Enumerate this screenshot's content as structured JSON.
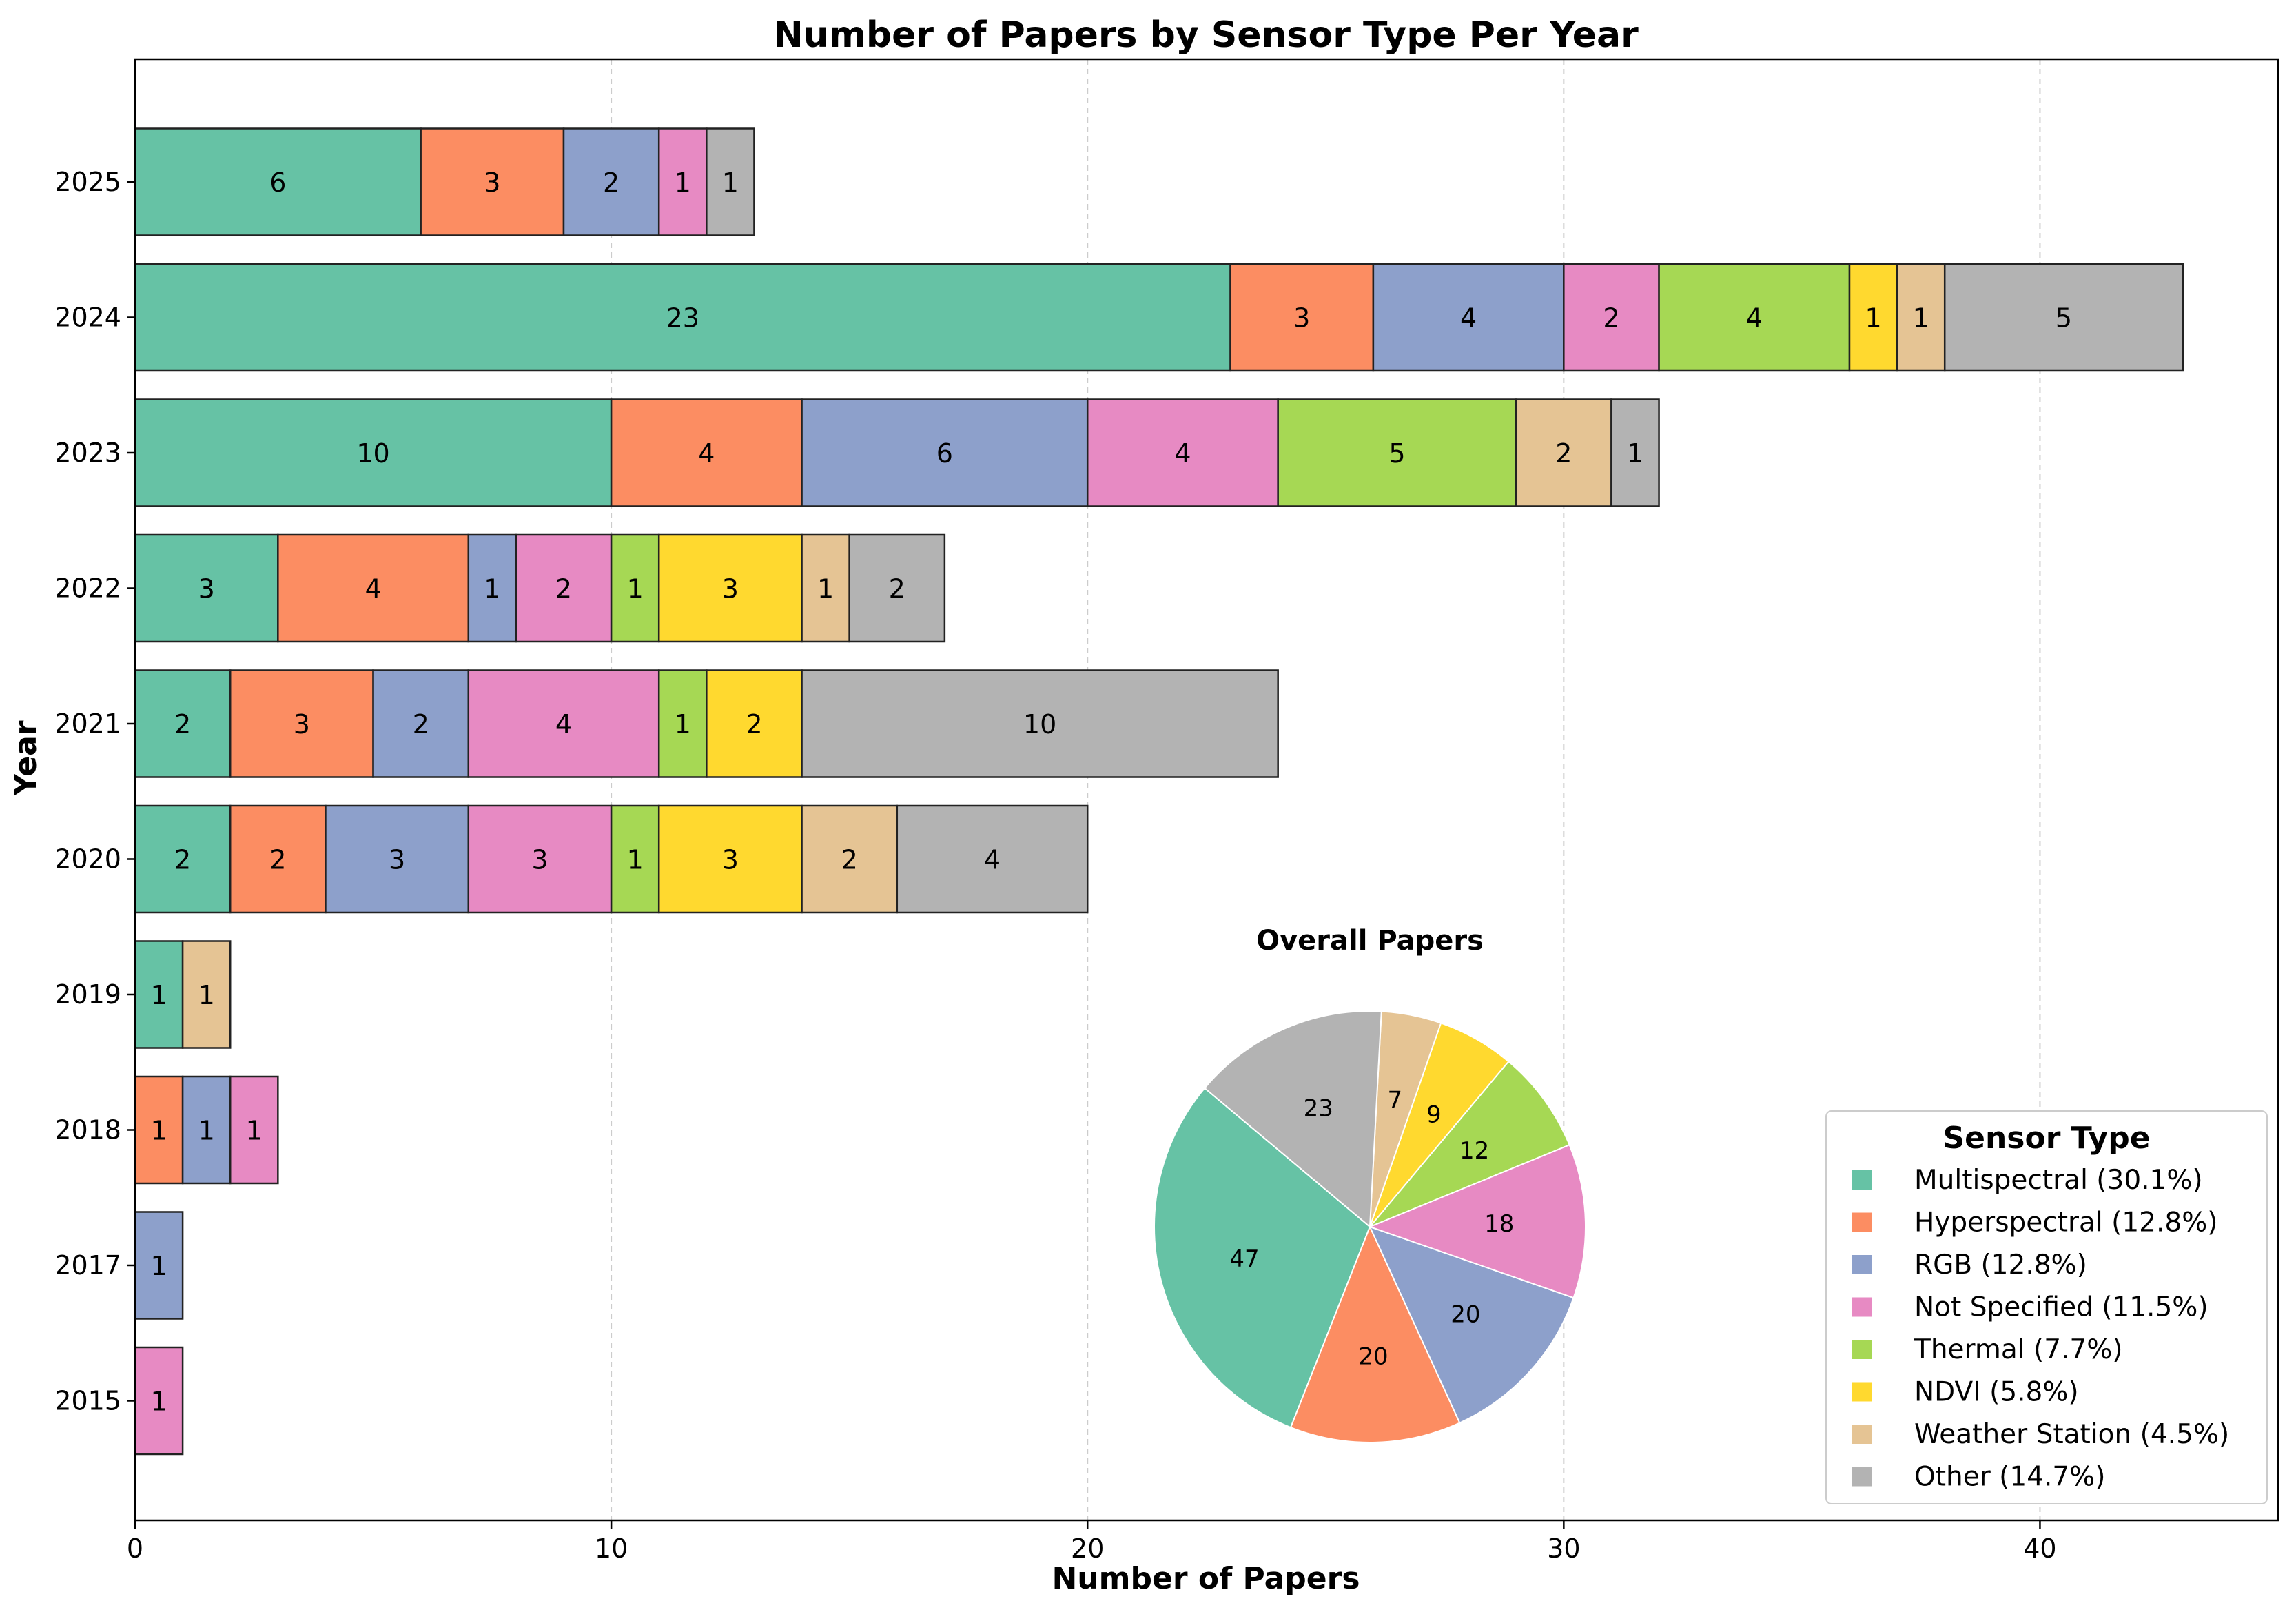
{
  "chart_data": [
    {
      "type": "bar",
      "orientation": "horizontal",
      "stacked": true,
      "title": "Number of Papers by Sensor Type Per Year",
      "xlabel": "Number of Papers",
      "ylabel": "Year",
      "xlim": [
        0,
        45
      ],
      "xticks": [
        0,
        10,
        20,
        30,
        40
      ],
      "grid": "x-dashed",
      "categories": [
        "2025",
        "2024",
        "2023",
        "2022",
        "2021",
        "2020",
        "2019",
        "2018",
        "2017",
        "2015"
      ],
      "series": [
        {
          "name": "Multispectral",
          "color": "#66c2a5",
          "values": [
            6,
            23,
            10,
            3,
            2,
            2,
            1,
            0,
            0,
            0
          ]
        },
        {
          "name": "Hyperspectral",
          "color": "#fc8d62",
          "values": [
            3,
            3,
            4,
            4,
            3,
            2,
            0,
            1,
            0,
            0
          ]
        },
        {
          "name": "RGB",
          "color": "#8da0cb",
          "values": [
            2,
            4,
            6,
            1,
            2,
            3,
            0,
            1,
            1,
            0
          ]
        },
        {
          "name": "Not Specified",
          "color": "#e78ac3",
          "values": [
            1,
            2,
            4,
            2,
            4,
            3,
            0,
            1,
            0,
            1
          ]
        },
        {
          "name": "Thermal",
          "color": "#a6d854",
          "values": [
            0,
            4,
            5,
            1,
            1,
            1,
            0,
            0,
            0,
            0
          ]
        },
        {
          "name": "NDVI",
          "color": "#ffd92f",
          "values": [
            0,
            1,
            0,
            3,
            2,
            3,
            0,
            0,
            0,
            0
          ]
        },
        {
          "name": "Weather Station",
          "color": "#e5c494",
          "values": [
            0,
            1,
            2,
            1,
            0,
            2,
            1,
            0,
            0,
            0
          ]
        },
        {
          "name": "Other",
          "color": "#b3b3b3",
          "values": [
            1,
            5,
            1,
            2,
            10,
            4,
            0,
            0,
            0,
            0
          ]
        }
      ]
    },
    {
      "type": "pie",
      "title": "Overall Papers",
      "labels": [
        "Multispectral",
        "Hyperspectral",
        "RGB",
        "Not Specified",
        "Thermal",
        "NDVI",
        "Weather Station",
        "Other"
      ],
      "values": [
        47,
        20,
        20,
        18,
        12,
        9,
        7,
        23
      ],
      "colors": [
        "#66c2a5",
        "#fc8d62",
        "#8da0cb",
        "#e78ac3",
        "#a6d854",
        "#ffd92f",
        "#e5c494",
        "#b3b3b3"
      ]
    }
  ],
  "legend": {
    "title": "Sensor Type",
    "placement": "bottom-right",
    "entries": [
      "Multispectral (30.1%)",
      "Hyperspectral (12.8%)",
      "RGB (12.8%)",
      "Not Specified (11.5%)",
      "Thermal (7.7%)",
      "NDVI (5.8%)",
      "Weather Station (4.5%)",
      "Other (14.7%)"
    ]
  }
}
